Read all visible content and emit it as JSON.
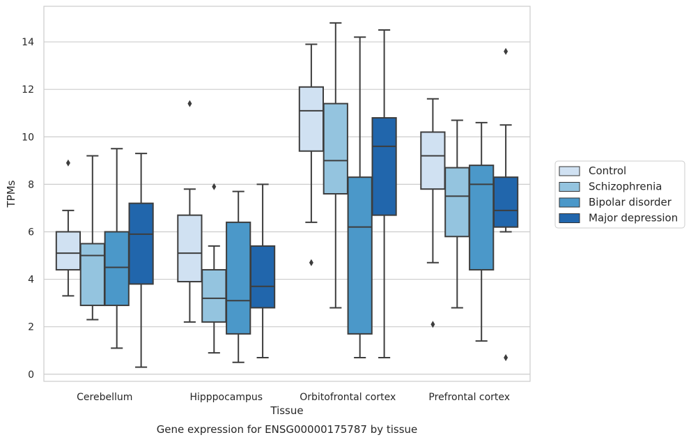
{
  "chart_data": {
    "type": "box",
    "title": "Gene expression for ENSG00000175787 by tissue",
    "xlabel": "Tissue",
    "ylabel": "TPMs",
    "ylim": [
      -0.3,
      15.5
    ],
    "yticks": [
      0,
      2,
      4,
      6,
      8,
      10,
      12,
      14
    ],
    "grid": "horizontal",
    "legend_position": "right",
    "categories": [
      "Cerebellum",
      "Hipppocampus",
      "Orbitofrontal cortex",
      "Prefrontal cortex"
    ],
    "series": [
      {
        "name": "Control",
        "color": "#d0e1f2",
        "boxes": [
          {
            "whislo": 3.3,
            "q1": 4.4,
            "med": 5.1,
            "q3": 6.0,
            "whishi": 6.9,
            "fliers": [
              8.9
            ]
          },
          {
            "whislo": 2.2,
            "q1": 3.9,
            "med": 5.1,
            "q3": 6.7,
            "whishi": 7.8,
            "fliers": [
              11.4
            ]
          },
          {
            "whislo": 6.4,
            "q1": 9.4,
            "med": 11.1,
            "q3": 12.1,
            "whishi": 13.9,
            "fliers": [
              4.7
            ]
          },
          {
            "whislo": 4.7,
            "q1": 7.8,
            "med": 9.2,
            "q3": 10.2,
            "whishi": 11.6,
            "fliers": [
              2.1
            ]
          }
        ]
      },
      {
        "name": "Schizophrenia",
        "color": "#94c4df",
        "boxes": [
          {
            "whislo": 2.3,
            "q1": 2.9,
            "med": 5.0,
            "q3": 5.5,
            "whishi": 9.2,
            "fliers": []
          },
          {
            "whislo": 0.9,
            "q1": 2.2,
            "med": 3.2,
            "q3": 4.4,
            "whishi": 5.4,
            "fliers": [
              7.9
            ]
          },
          {
            "whislo": 2.8,
            "q1": 7.6,
            "med": 9.0,
            "q3": 11.4,
            "whishi": 14.8,
            "fliers": []
          },
          {
            "whislo": 2.8,
            "q1": 5.8,
            "med": 7.5,
            "q3": 8.7,
            "whishi": 10.7,
            "fliers": []
          }
        ]
      },
      {
        "name": "Bipolar disorder",
        "color": "#4b98c9",
        "boxes": [
          {
            "whislo": 1.1,
            "q1": 2.9,
            "med": 4.5,
            "q3": 6.0,
            "whishi": 9.5,
            "fliers": []
          },
          {
            "whislo": 0.5,
            "q1": 1.7,
            "med": 3.1,
            "q3": 6.4,
            "whishi": 7.7,
            "fliers": []
          },
          {
            "whislo": 0.7,
            "q1": 1.7,
            "med": 6.2,
            "q3": 8.3,
            "whishi": 14.2,
            "fliers": []
          },
          {
            "whislo": 1.4,
            "q1": 4.4,
            "med": 8.0,
            "q3": 8.8,
            "whishi": 10.6,
            "fliers": []
          }
        ]
      },
      {
        "name": "Major depression",
        "color": "#2166ac",
        "boxes": [
          {
            "whislo": 0.3,
            "q1": 3.8,
            "med": 5.9,
            "q3": 7.2,
            "whishi": 9.3,
            "fliers": []
          },
          {
            "whislo": 0.7,
            "q1": 2.8,
            "med": 3.7,
            "q3": 5.4,
            "whishi": 8.0,
            "fliers": []
          },
          {
            "whislo": 0.7,
            "q1": 6.7,
            "med": 9.6,
            "q3": 10.8,
            "whishi": 14.5,
            "fliers": []
          },
          {
            "whislo": 6.0,
            "q1": 6.2,
            "med": 6.9,
            "q3": 8.3,
            "whishi": 10.5,
            "fliers": [
              13.6,
              0.7
            ]
          }
        ]
      }
    ]
  }
}
